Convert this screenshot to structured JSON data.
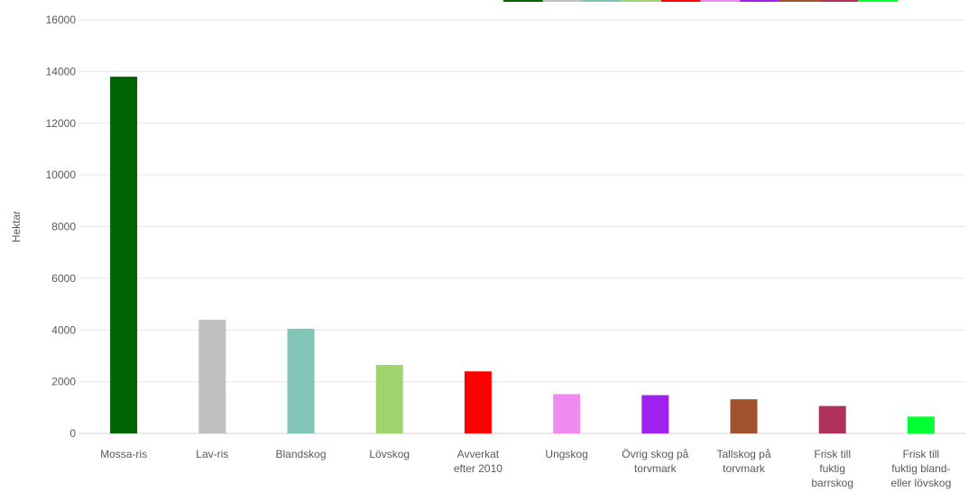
{
  "chart_data": {
    "type": "bar",
    "title": "",
    "xlabel": "",
    "ylabel": "Hektar",
    "ylim": [
      0,
      16000
    ],
    "yticks": [
      0,
      2000,
      4000,
      6000,
      8000,
      10000,
      12000,
      14000,
      16000
    ],
    "grid": true,
    "categories": [
      [
        "Mossa-ris"
      ],
      [
        "Lav-ris"
      ],
      [
        "Blandskog"
      ],
      [
        "Lövskog"
      ],
      [
        "Avverkat",
        "efter 2010"
      ],
      [
        "Ungskog"
      ],
      [
        "Övrig skog på",
        "torvmark"
      ],
      [
        "Tallskog på",
        "torvmark"
      ],
      [
        "Frisk till",
        "fuktig",
        "barrskog"
      ],
      [
        "Frisk till",
        "fuktig bland-",
        "eller lövskog"
      ]
    ],
    "values": [
      13800,
      4400,
      4050,
      2650,
      2400,
      1520,
      1480,
      1320,
      1060,
      650
    ],
    "colors": [
      "#006400",
      "#c0c0c0",
      "#80c5b8",
      "#a0d56e",
      "#ff0000",
      "#f08cf0",
      "#a020f0",
      "#a0522d",
      "#b0305e",
      "#00ff33"
    ]
  }
}
